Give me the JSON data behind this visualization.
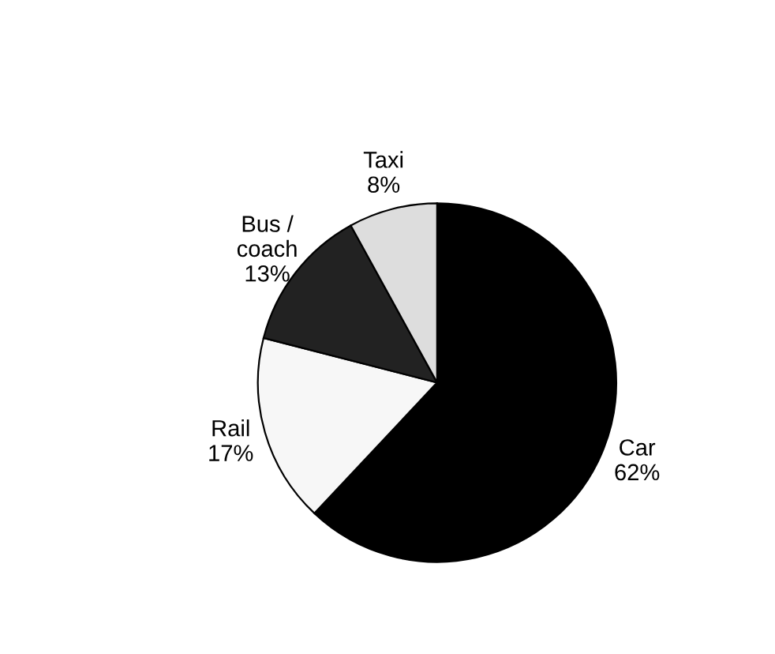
{
  "chart_data": {
    "type": "pie",
    "categories": [
      "Car",
      "Rail",
      "Bus /\ncoach",
      "Taxi"
    ],
    "values": [
      62,
      17,
      13,
      8
    ],
    "value_labels": [
      "62%",
      "17%",
      "13%",
      "8%"
    ],
    "colors": [
      "#000000",
      "#f7f7f7",
      "#222222",
      "#dddddd"
    ],
    "legend": false
  }
}
